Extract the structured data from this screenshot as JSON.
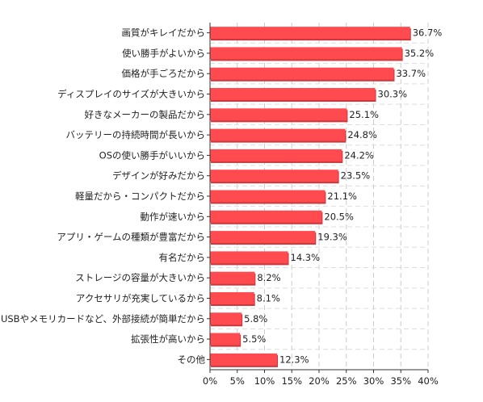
{
  "chart_data": {
    "type": "bar",
    "orientation": "horizontal",
    "categories": [
      "画質がキレイだから",
      "使い勝手がよいから",
      "価格が手ごろだから",
      "ディスプレイのサイズが大きいから",
      "好きなメーカーの製品だから",
      "バッテリーの持続時間が長いから",
      "OSの使い勝手がいいから",
      "デザインが好みだから",
      "軽量だから・コンパクトだから",
      "動作が速いから",
      "アプリ・ゲームの種類が豊富だから",
      "有名だから",
      "ストレージの容量が大きいから",
      "アクセサリが充実しているから",
      "USBやメモリカードなど、外部接続が簡単だから",
      "拡張性が高いから",
      "その他"
    ],
    "values": [
      36.7,
      35.2,
      33.7,
      30.3,
      25.1,
      24.8,
      24.2,
      23.5,
      21.1,
      20.5,
      19.3,
      14.3,
      8.2,
      8.1,
      5.8,
      5.5,
      12.3
    ],
    "value_labels": [
      "36.7%",
      "35.2%",
      "33.7%",
      "30.3%",
      "25.1%",
      "24.8%",
      "24.2%",
      "23.5%",
      "21.1%",
      "20.5%",
      "19.3%",
      "14.3%",
      "8.2%",
      "8.1%",
      "5.8%",
      "5.5%",
      "12.3%"
    ],
    "xlim": [
      0,
      40
    ],
    "x_ticks": [
      0,
      5,
      10,
      15,
      20,
      25,
      30,
      35,
      40
    ],
    "x_tick_labels": [
      "0%",
      "5%",
      "10%",
      "15%",
      "20%",
      "25%",
      "30%",
      "35%",
      "40%"
    ],
    "grid": true,
    "bar_color": "#ff4a4f",
    "bar_shadow_color": "#c8383c"
  }
}
